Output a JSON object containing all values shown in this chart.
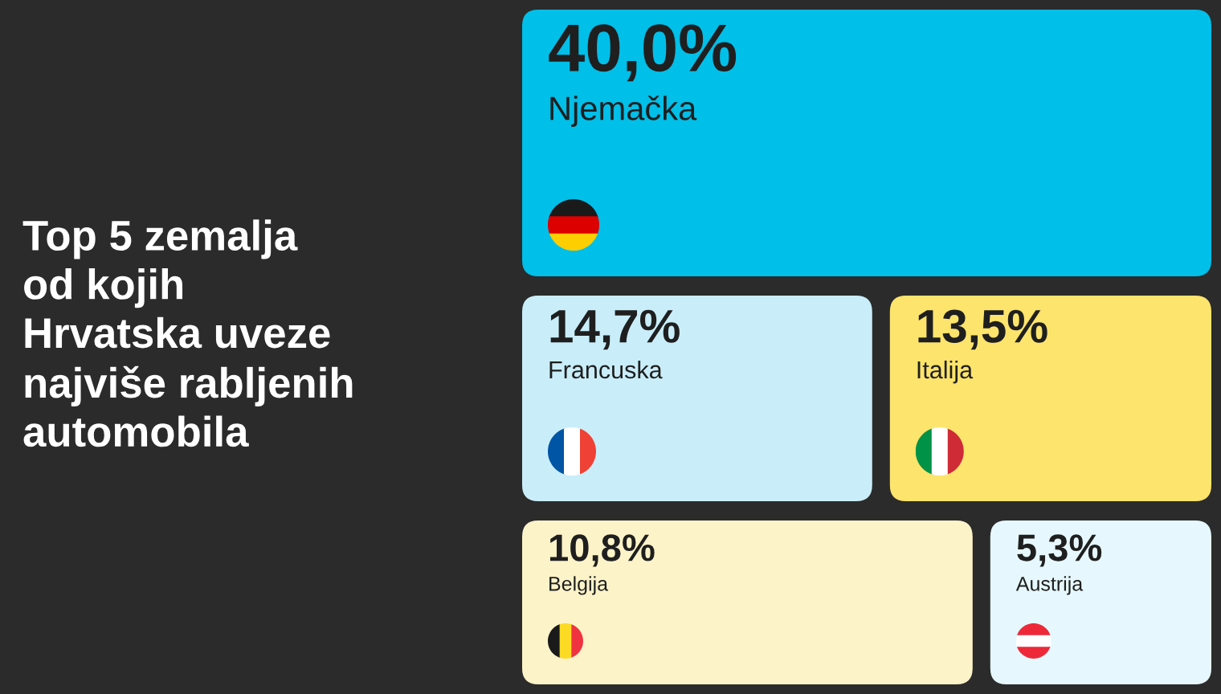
{
  "chart_data": {
    "type": "other",
    "title": "Top 5 zemalja\nod kojih\nHrvatska uveze\nnajviše rabljenih\nautomobila",
    "categories": [
      "Njemačka",
      "Francuska",
      "Italija",
      "Belgija",
      "Austrija"
    ],
    "values": [
      40.0,
      14.7,
      13.5,
      10.8,
      5.3
    ],
    "value_labels": [
      "40,0%",
      "14,7%",
      "13,5%",
      "10,8%",
      "5,3%"
    ],
    "colors": [
      "#00bfe8",
      "#c9eef9",
      "#fde46c",
      "#fdf3c9",
      "#e6f8fd"
    ]
  }
}
